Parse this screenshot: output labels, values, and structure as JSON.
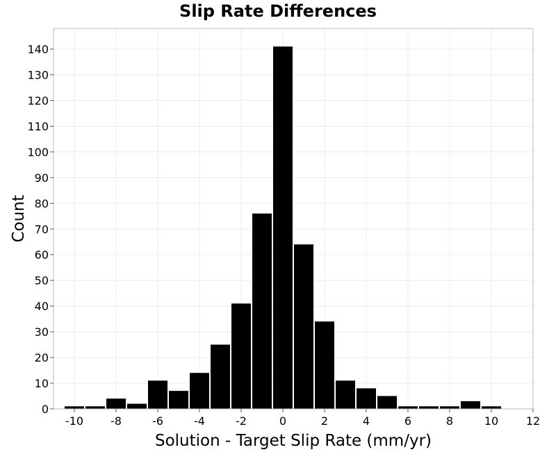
{
  "chart_data": {
    "type": "bar",
    "title": "Slip Rate Differences",
    "xlabel": "Solution - Target Slip Rate (mm/yr)",
    "ylabel": "Count",
    "xlim": [
      -11,
      12
    ],
    "ylim": [
      0,
      148
    ],
    "x_ticks": [
      -10,
      -8,
      -6,
      -4,
      -2,
      0,
      2,
      4,
      6,
      8,
      10,
      12
    ],
    "y_ticks": [
      0,
      10,
      20,
      30,
      40,
      50,
      60,
      70,
      80,
      90,
      100,
      110,
      120,
      130,
      140
    ],
    "bin_width": 1,
    "bins": [
      {
        "x": -10,
        "value": 1
      },
      {
        "x": -9,
        "value": 1
      },
      {
        "x": -8,
        "value": 4
      },
      {
        "x": -7,
        "value": 2
      },
      {
        "x": -6,
        "value": 11
      },
      {
        "x": -5,
        "value": 7
      },
      {
        "x": -4,
        "value": 14
      },
      {
        "x": -3,
        "value": 25
      },
      {
        "x": -2,
        "value": 41
      },
      {
        "x": -1,
        "value": 76
      },
      {
        "x": 0,
        "value": 141
      },
      {
        "x": 1,
        "value": 64
      },
      {
        "x": 2,
        "value": 34
      },
      {
        "x": 3,
        "value": 11
      },
      {
        "x": 4,
        "value": 8
      },
      {
        "x": 5,
        "value": 5
      },
      {
        "x": 6,
        "value": 1
      },
      {
        "x": 7,
        "value": 1
      },
      {
        "x": 8,
        "value": 1
      },
      {
        "x": 9,
        "value": 3
      },
      {
        "x": 10,
        "value": 1
      }
    ],
    "bar_color": "#000000",
    "grid": true,
    "grid_color": "#ebebeb",
    "legend": "none"
  }
}
